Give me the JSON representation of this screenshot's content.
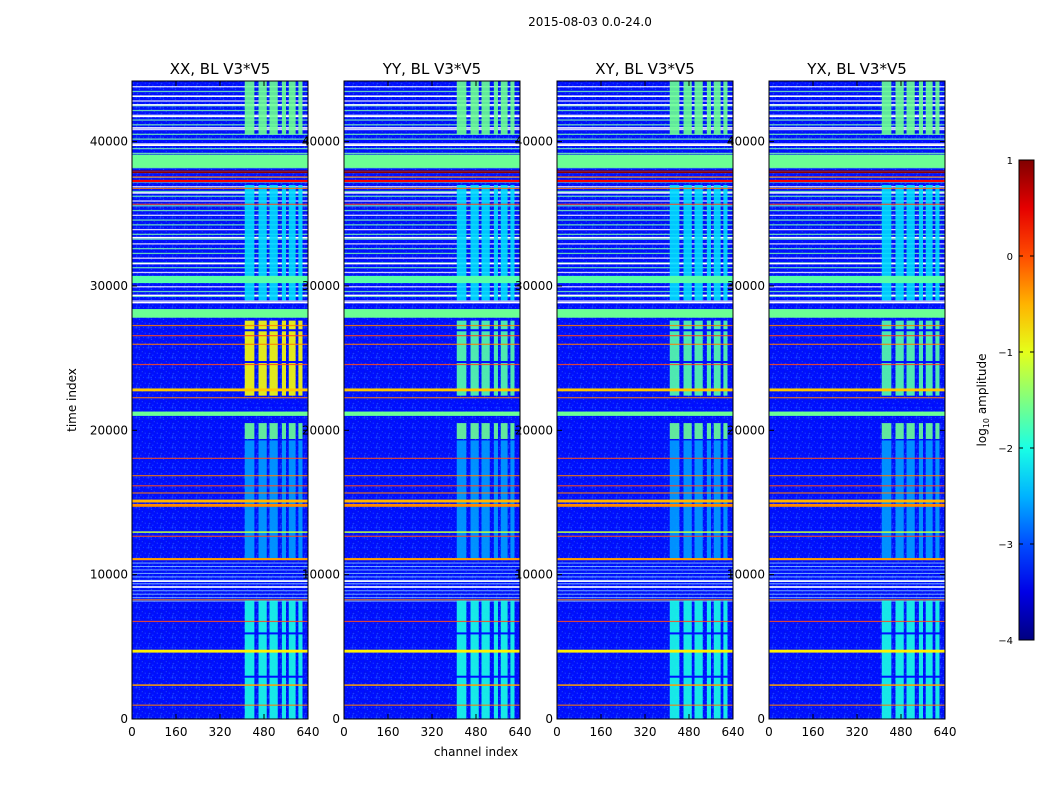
{
  "figure": {
    "suptitle": "2015-08-03 0.0-24.0"
  },
  "chart_data": {
    "type": "heatmap",
    "title": "2015-08-03 0.0-24.0",
    "xlabel": "channel index",
    "ylabel": "time index",
    "xlim": [
      0,
      640
    ],
    "ylim": [
      0,
      44200
    ],
    "x_ticks": [
      0,
      160,
      320,
      480,
      640
    ],
    "y_ticks": [
      0,
      10000,
      20000,
      30000,
      40000
    ],
    "panels": [
      {
        "title": "XX, BL V3*V5",
        "pol": "XX"
      },
      {
        "title": "YY, BL V3*V5",
        "pol": "YY"
      },
      {
        "title": "XY, BL V3*V5",
        "pol": "XY"
      },
      {
        "title": "YX, BL V3*V5",
        "pol": "YX"
      }
    ],
    "background_level": -3.3,
    "rfi_channel_bands": [
      [
        410,
        445
      ],
      [
        460,
        490
      ],
      [
        500,
        530
      ],
      [
        545,
        560
      ],
      [
        570,
        595
      ],
      [
        605,
        620
      ]
    ],
    "horizontal_bands": [
      {
        "t0": 38200,
        "t1": 39100,
        "level": -1.6
      },
      {
        "t0": 27800,
        "t1": 28400,
        "level": -1.6
      },
      {
        "t0": 30200,
        "t1": 30700,
        "level": -1.7
      },
      {
        "t0": 37200,
        "t1": 37350,
        "level": 0.4
      },
      {
        "t0": 22700,
        "t1": 22900,
        "level": -0.6
      },
      {
        "t0": 21000,
        "t1": 21300,
        "level": -1.6
      },
      {
        "t0": 15000,
        "t1": 15200,
        "level": -0.5
      },
      {
        "t0": 14700,
        "t1": 14900,
        "level": -0.3
      },
      {
        "t0": 12900,
        "t1": 13000,
        "level": -1.2
      },
      {
        "t0": 11000,
        "t1": 11150,
        "level": -0.4
      },
      {
        "t0": 4600,
        "t1": 4800,
        "level": -0.8
      },
      {
        "t0": 2300,
        "t1": 2400,
        "level": -0.4
      }
    ],
    "colorbar": {
      "label": "log10 amplitude",
      "label_main": "log",
      "label_sub": "10",
      "label_rest": " amplitude",
      "range": [
        -4,
        1
      ],
      "ticks": [
        1,
        0,
        -1,
        -2,
        -3,
        -4
      ],
      "tick_labels": [
        "1",
        "0",
        "−1",
        "−2",
        "−3",
        "−4"
      ],
      "colormap": "jet"
    }
  }
}
